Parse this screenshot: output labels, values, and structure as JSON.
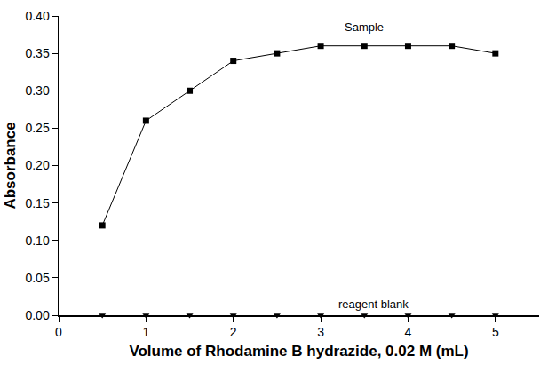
{
  "chart_data": {
    "type": "line",
    "x_label": "Volume of Rhodamine B hydrazide, 0.02 M (mL)",
    "y_label": "Absorbance",
    "x": [
      0.5,
      1,
      1.5,
      2,
      2.5,
      3,
      3.5,
      4,
      4.5,
      5
    ],
    "series": [
      {
        "color": "#000000",
        "marker": "square",
        "line_style": "solid",
        "values": [
          0.12,
          0.26,
          0.3,
          0.34,
          0.35,
          0.36,
          0.36,
          0.36,
          0.36,
          0.35
        ]
      },
      {
        "color": "#000000",
        "marker": "triangle-down",
        "line_style": "none",
        "values": [
          0,
          0,
          0,
          0,
          0,
          0,
          0,
          0,
          0,
          0
        ]
      }
    ],
    "annotations": [
      {
        "text": "Sample",
        "x": 3.5,
        "y": 0.385
      },
      {
        "text": "reagent blank",
        "x": 3.6,
        "y": 0.015
      }
    ],
    "xlim": [
      0,
      5.5
    ],
    "xticks": [
      0,
      1,
      2,
      3,
      4,
      5
    ],
    "ylim": [
      0,
      0.4
    ],
    "yticks": [
      {
        "value": 0,
        "label": "0.00"
      },
      {
        "value": 0.05,
        "label": "0.05"
      },
      {
        "value": 0.1,
        "label": "0.10"
      },
      {
        "value": 0.15,
        "label": "0.15"
      },
      {
        "value": 0.2,
        "label": "0.20"
      },
      {
        "value": 0.25,
        "label": "0.25"
      },
      {
        "value": 0.3,
        "label": "0.30"
      },
      {
        "value": 0.35,
        "label": "0.35"
      },
      {
        "value": 0.4,
        "label": "0.40"
      }
    ],
    "grid": false
  }
}
